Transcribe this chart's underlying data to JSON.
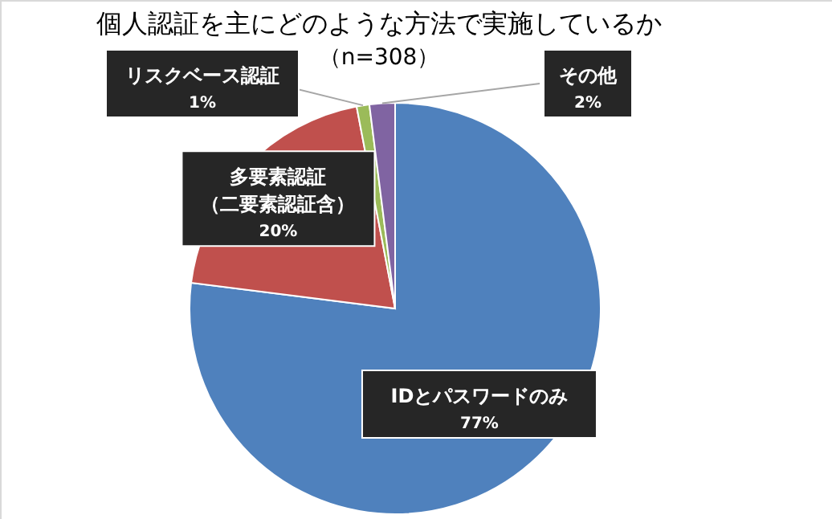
{
  "chart_data": {
    "type": "pie",
    "title": "個人認証を主にどのような方法で実施しているか",
    "subtitle": "（n=308）",
    "categories": [
      "IDとパスワードのみ",
      "多要素認証（二要素認証含）",
      "リスクベース認証",
      "その他"
    ],
    "values": [
      77,
      20,
      1,
      2
    ],
    "colors": [
      "#4f81bd",
      "#c0504d",
      "#9bbb59",
      "#8064a2"
    ],
    "value_labels": [
      "77%",
      "20%",
      "1%",
      "2%"
    ]
  }
}
